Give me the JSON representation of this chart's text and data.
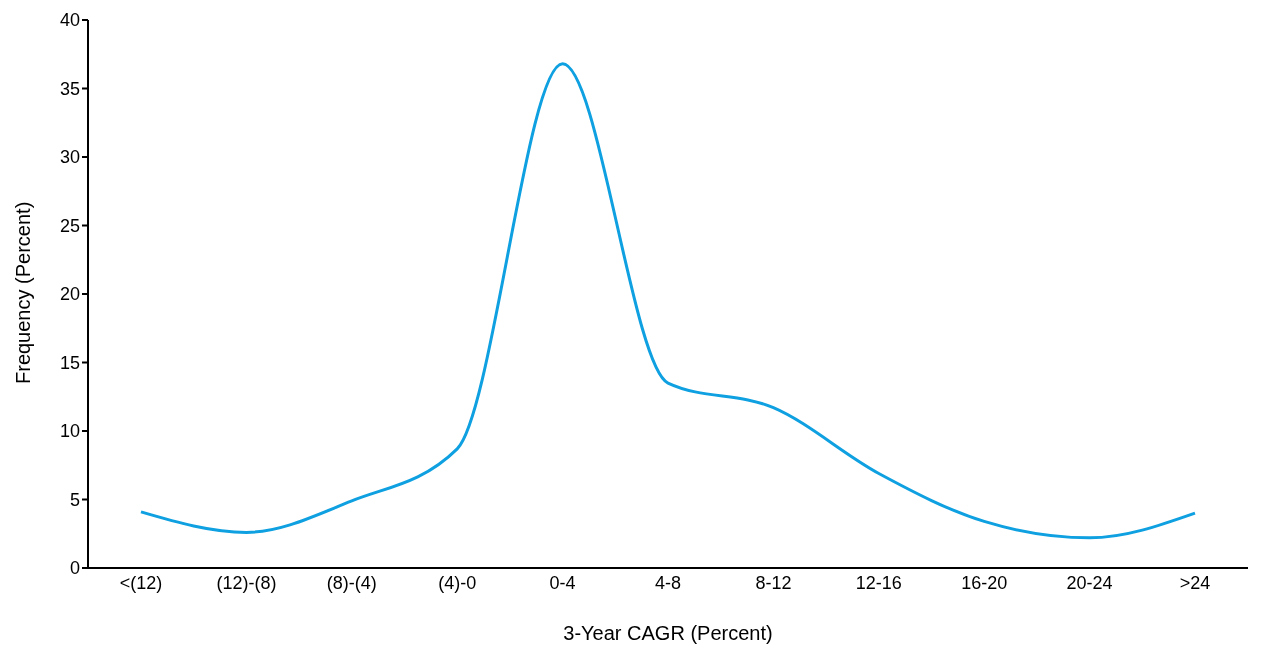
{
  "chart_data": {
    "type": "line",
    "xlabel": "3-Year CAGR (Percent)",
    "ylabel": "Frequency (Percent)",
    "categories": [
      "<(12)",
      "(12)-(8)",
      "(8)-(4)",
      "(4)-0",
      "0-4",
      "4-8",
      "8-12",
      "12-16",
      "16-20",
      "20-24",
      ">24"
    ],
    "series": [
      {
        "color": "#0ea0e0",
        "values": [
          4.1,
          2.6,
          4.9,
          8.7,
          36.8,
          13.5,
          11.7,
          6.9,
          3.4,
          2.2,
          4.0
        ]
      }
    ],
    "ylim": [
      0,
      40
    ],
    "yticks": [
      0,
      5,
      10,
      15,
      20,
      25,
      30,
      35,
      40
    ],
    "grid": false,
    "legend": false,
    "marker": "none",
    "line_style": "solid"
  }
}
